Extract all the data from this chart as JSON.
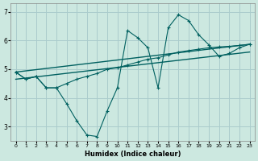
{
  "title": "",
  "xlabel": "Humidex (Indice chaleur)",
  "bg_color": "#cce8e0",
  "grid_color": "#aacccc",
  "line_color": "#006060",
  "xlim": [
    -0.5,
    23.5
  ],
  "ylim": [
    2.5,
    7.3
  ],
  "yticks": [
    3,
    4,
    5,
    6,
    7
  ],
  "xticks": [
    0,
    1,
    2,
    3,
    4,
    5,
    6,
    7,
    8,
    9,
    10,
    11,
    12,
    13,
    14,
    15,
    16,
    17,
    18,
    19,
    20,
    21,
    22,
    23
  ],
  "series": [
    {
      "x": [
        0,
        1,
        2,
        3,
        4,
        5,
        6,
        7,
        8,
        9,
        10,
        11,
        12,
        13,
        14,
        15,
        16,
        17,
        18,
        19,
        20,
        21,
        22,
        23
      ],
      "y": [
        4.9,
        4.65,
        4.75,
        4.35,
        4.35,
        3.8,
        3.2,
        2.7,
        2.65,
        3.55,
        4.35,
        6.35,
        6.1,
        5.75,
        4.35,
        6.45,
        6.9,
        6.7,
        6.2,
        5.85,
        5.45,
        5.55,
        5.75,
        5.87
      ],
      "marker": true
    },
    {
      "x": [
        0,
        1,
        2,
        3,
        4,
        5,
        6,
        7,
        8,
        9,
        10,
        11,
        12,
        13,
        14,
        15,
        16,
        17,
        18,
        19,
        20,
        21,
        22,
        23
      ],
      "y": [
        4.9,
        4.65,
        4.75,
        4.35,
        4.35,
        4.5,
        4.65,
        4.75,
        4.85,
        5.0,
        5.05,
        5.15,
        5.25,
        5.35,
        5.4,
        5.5,
        5.6,
        5.65,
        5.7,
        5.75,
        5.78,
        5.8,
        5.83,
        5.87
      ],
      "marker": true
    },
    {
      "x": [
        0,
        23
      ],
      "y": [
        4.9,
        5.87
      ],
      "marker": false
    },
    {
      "x": [
        0,
        23
      ],
      "y": [
        4.65,
        5.6
      ],
      "marker": false
    }
  ]
}
